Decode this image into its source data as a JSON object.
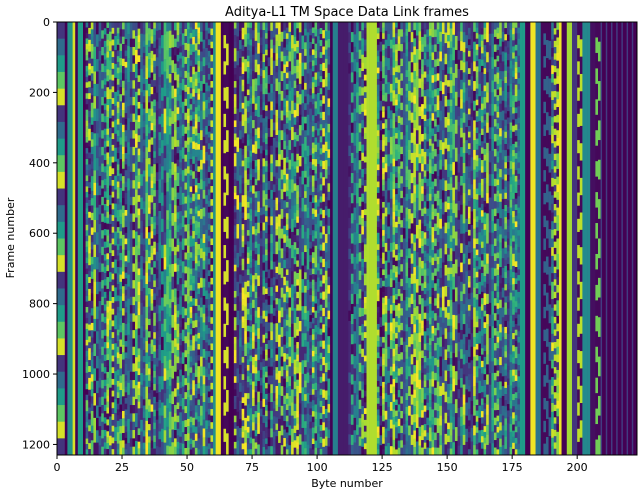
{
  "chart_data": {
    "type": "heatmap",
    "title": "Aditya-L1 TM Space Data Link frames",
    "xlabel": "Byte number",
    "ylabel": "Frame number",
    "xlim": [
      0,
      223
    ],
    "ylim": [
      1230,
      0
    ],
    "x_ticks": [
      0,
      25,
      50,
      75,
      100,
      125,
      150,
      175,
      200
    ],
    "y_ticks": [
      0,
      200,
      400,
      600,
      800,
      1000,
      1200
    ],
    "x_tick_labels": [
      "0",
      "25",
      "50",
      "75",
      "100",
      "125",
      "150",
      "175",
      "200"
    ],
    "y_tick_labels": [
      "0",
      "200",
      "400",
      "600",
      "800",
      "1000",
      "1200"
    ],
    "colormap": "viridis",
    "value_range": [
      0,
      255
    ],
    "grid": false,
    "columns": [
      {
        "from": 0,
        "to": 3,
        "pattern": "gradient"
      },
      {
        "from": 3,
        "to": 4,
        "pattern": "solid",
        "value": 0
      },
      {
        "from": 4,
        "to": 6,
        "pattern": "solid",
        "value": 130
      },
      {
        "from": 6,
        "to": 7,
        "pattern": "solid",
        "value": 240
      },
      {
        "from": 7,
        "to": 8,
        "pattern": "solid",
        "value": 0
      },
      {
        "from": 8,
        "to": 10,
        "pattern": "solid",
        "value": 140
      },
      {
        "from": 10,
        "to": 11,
        "pattern": "solid",
        "value": 0
      },
      {
        "from": 11,
        "to": 60,
        "pattern": "noise"
      },
      {
        "from": 60,
        "to": 61,
        "pattern": "solid",
        "value": 130
      },
      {
        "from": 61,
        "to": 63,
        "pattern": "solid",
        "value": 250
      },
      {
        "from": 63,
        "to": 64,
        "pattern": "solid",
        "value": 0
      },
      {
        "from": 64,
        "to": 66,
        "pattern": "stripes",
        "value": 240
      },
      {
        "from": 66,
        "to": 68,
        "pattern": "solid",
        "value": 0
      },
      {
        "from": 68,
        "to": 105,
        "pattern": "noise"
      },
      {
        "from": 105,
        "to": 106,
        "pattern": "solid",
        "value": 0
      },
      {
        "from": 106,
        "to": 108,
        "pattern": "solid",
        "value": 110
      },
      {
        "from": 108,
        "to": 112,
        "pattern": "solid",
        "value": 20
      },
      {
        "from": 112,
        "to": 119,
        "pattern": "noise"
      },
      {
        "from": 119,
        "to": 123,
        "pattern": "solid",
        "value": 225
      },
      {
        "from": 123,
        "to": 178,
        "pattern": "noise"
      },
      {
        "from": 178,
        "to": 180,
        "pattern": "solid",
        "value": 140
      },
      {
        "from": 180,
        "to": 182,
        "pattern": "solid",
        "value": 0
      },
      {
        "from": 182,
        "to": 184,
        "pattern": "solid",
        "value": 250
      },
      {
        "from": 184,
        "to": 186,
        "pattern": "solid",
        "value": 100
      },
      {
        "from": 186,
        "to": 187,
        "pattern": "solid",
        "value": 5
      },
      {
        "from": 187,
        "to": 190,
        "pattern": "stripes",
        "value": 80
      },
      {
        "from": 190,
        "to": 193,
        "pattern": "noise"
      },
      {
        "from": 193,
        "to": 194,
        "pattern": "solid",
        "value": 250
      },
      {
        "from": 194,
        "to": 196,
        "pattern": "solid",
        "value": 0
      },
      {
        "from": 196,
        "to": 198,
        "pattern": "solid",
        "value": 220
      },
      {
        "from": 198,
        "to": 200,
        "pattern": "solid",
        "value": 40
      },
      {
        "from": 200,
        "to": 202,
        "pattern": "stripes",
        "value": 230
      },
      {
        "from": 202,
        "to": 205,
        "pattern": "solid",
        "value": 120
      },
      {
        "from": 205,
        "to": 207,
        "pattern": "solid",
        "value": 10
      },
      {
        "from": 207,
        "to": 209,
        "pattern": "stripes",
        "value": 200
      },
      {
        "from": 209,
        "to": 223,
        "pattern": "dark_stripes"
      }
    ]
  }
}
